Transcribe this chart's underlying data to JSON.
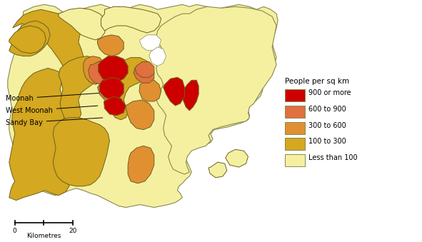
{
  "legend_title": "People per sq km",
  "legend_items": [
    {
      "label": "900 or more",
      "color": "#cc0000"
    },
    {
      "label": "600 to 900",
      "color": "#e07040"
    },
    {
      "label": "300 to 600",
      "color": "#e09030"
    },
    {
      "label": "100 to 300",
      "color": "#d4a820"
    },
    {
      "label": "Less than 100",
      "color": "#f5f0a0"
    }
  ],
  "figsize": [
    5.91,
    3.39
  ],
  "dpi": 100,
  "bg_color": "#ffffff"
}
